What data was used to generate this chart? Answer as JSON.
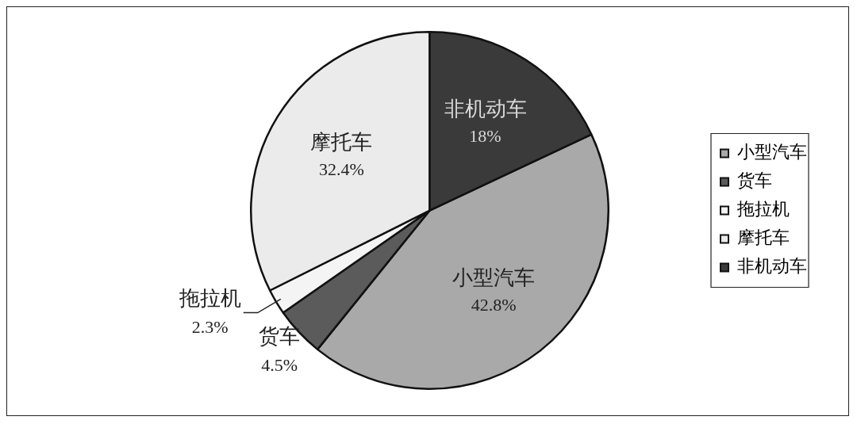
{
  "chart_data": {
    "type": "pie",
    "categories": [
      "小型汽车",
      "货车",
      "拖拉机",
      "摩托车",
      "非机动车"
    ],
    "values": [
      42.8,
      4.5,
      2.3,
      32.4,
      18
    ],
    "value_labels": [
      "42.8%",
      "4.5%",
      "2.3%",
      "32.4%",
      "18%"
    ],
    "colors": [
      "#a9a9a9",
      "#5b5b5b",
      "#f4f4f4",
      "#ebebeb",
      "#3a3a3a"
    ],
    "legend": "right"
  }
}
